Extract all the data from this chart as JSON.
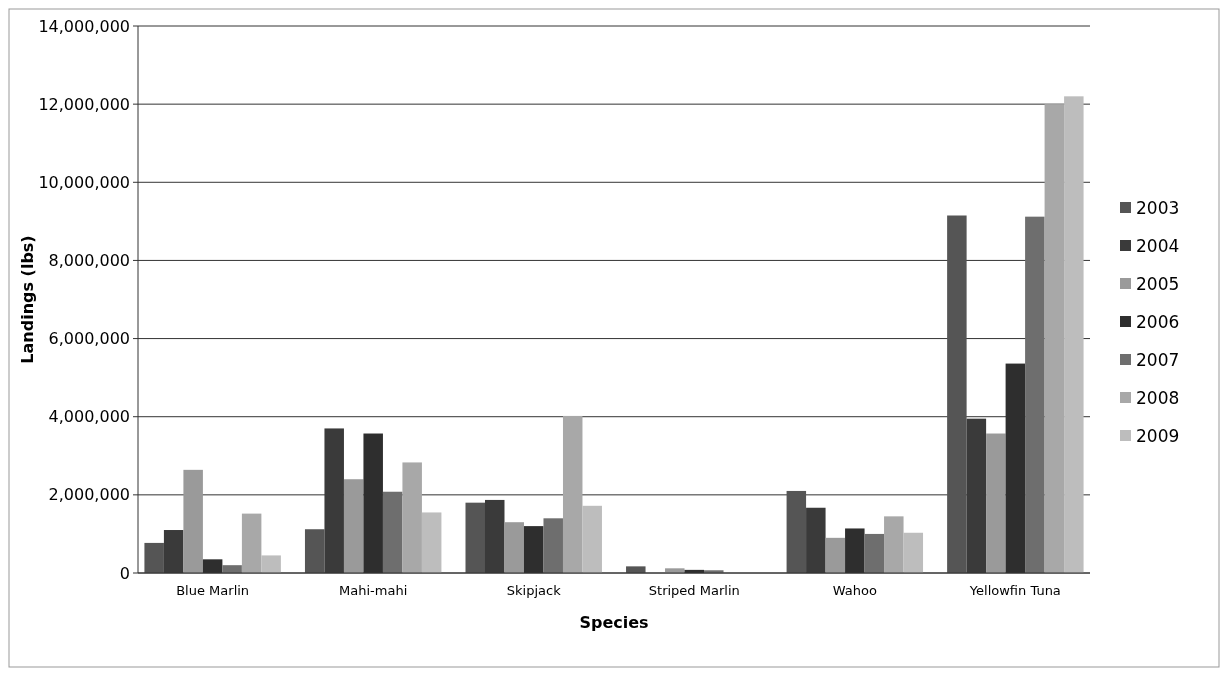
{
  "chart_data": {
    "type": "bar",
    "xlabel": "Species",
    "ylabel": "Landings (lbs)",
    "categories": [
      "Blue Marlin",
      "Mahi-mahi",
      "Skipjack",
      "Striped Marlin",
      "Wahoo",
      "Yellowfin Tuna"
    ],
    "series": [
      {
        "name": "2003",
        "color": "#555555",
        "values": [
          770000,
          1120000,
          1800000,
          170000,
          2100000,
          9150000
        ]
      },
      {
        "name": "2004",
        "color": "#3a3a3a",
        "values": [
          1100000,
          3700000,
          1870000,
          null,
          1670000,
          3950000
        ]
      },
      {
        "name": "2005",
        "color": "#9a9a9a",
        "values": [
          2640000,
          2400000,
          1300000,
          120000,
          900000,
          3570000
        ]
      },
      {
        "name": "2006",
        "color": "#2e2e2e",
        "values": [
          350000,
          3570000,
          1200000,
          80000,
          1140000,
          5360000
        ]
      },
      {
        "name": "2007",
        "color": "#6e6e6e",
        "values": [
          200000,
          2080000,
          1400000,
          70000,
          1000000,
          9120000
        ]
      },
      {
        "name": "2008",
        "color": "#a8a8a8",
        "values": [
          1520000,
          2830000,
          4020000,
          null,
          1450000,
          12000000
        ]
      },
      {
        "name": "2009",
        "color": "#bdbdbd",
        "values": [
          450000,
          1550000,
          1720000,
          null,
          1030000,
          12200000
        ]
      }
    ],
    "ylim": [
      0,
      14000000
    ],
    "yticks": [
      {
        "value": 0,
        "label": "0"
      },
      {
        "value": 2000000,
        "label": "2,000,000"
      },
      {
        "value": 4000000,
        "label": "4,000,000"
      },
      {
        "value": 6000000,
        "label": "6,000,000"
      },
      {
        "value": 8000000,
        "label": "8,000,000"
      },
      {
        "value": 10000000,
        "label": "10,000,000"
      },
      {
        "value": 12000000,
        "label": "12,000,000"
      },
      {
        "value": 14000000,
        "label": "14,000,000"
      }
    ],
    "grid": "y",
    "legend": "right"
  }
}
